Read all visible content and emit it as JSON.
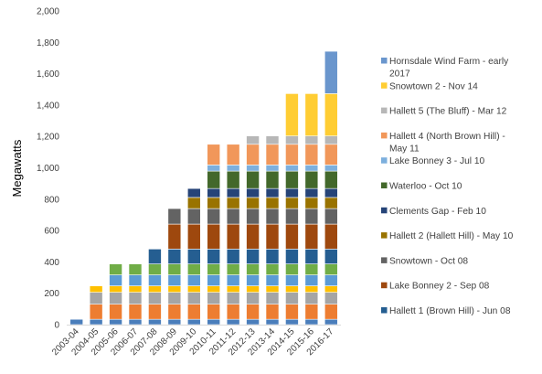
{
  "chart_data": {
    "type": "bar",
    "stacked": true,
    "title": "",
    "xlabel": "",
    "ylabel": "Megawatts",
    "ylim": [
      0,
      2000
    ],
    "y_ticks": [
      "0",
      "200",
      "400",
      "600",
      "800",
      "1,000",
      "1,200",
      "1,400",
      "1,600",
      "1,800",
      "2,000"
    ],
    "y_tick_values": [
      0,
      200,
      400,
      600,
      800,
      1000,
      1200,
      1400,
      1600,
      1800,
      2000
    ],
    "grid": false,
    "legend_position": "right",
    "categories": [
      "2003-04",
      "2004-05",
      "2005-06",
      "2006-07",
      "2007-08",
      "2008-09",
      "2009-10",
      "2010-11",
      "2011-12",
      "2012-13",
      "2013-14",
      "2014-15",
      "2015-16",
      "2016-17"
    ],
    "series": [
      {
        "name": "",
        "color": "#4a7ebb",
        "values": [
          34,
          34,
          34,
          34,
          34,
          34,
          34,
          34,
          34,
          34,
          34,
          34,
          34,
          34
        ]
      },
      {
        "name": "",
        "color": "#ed7d31",
        "values": [
          0,
          96,
          96,
          96,
          96,
          96,
          96,
          96,
          96,
          96,
          96,
          96,
          96,
          96
        ]
      },
      {
        "name": "",
        "color": "#a5a5a5",
        "values": [
          0,
          76,
          76,
          76,
          76,
          76,
          76,
          76,
          76,
          76,
          76,
          76,
          76,
          76
        ]
      },
      {
        "name": "",
        "color": "#ffc000",
        "values": [
          0,
          41,
          41,
          41,
          41,
          41,
          41,
          41,
          41,
          41,
          41,
          41,
          41,
          41
        ]
      },
      {
        "name": "",
        "color": "#5b9bd5",
        "values": [
          0,
          0,
          70,
          70,
          70,
          70,
          70,
          70,
          70,
          70,
          70,
          70,
          70,
          70
        ]
      },
      {
        "name": "",
        "color": "#70ad47",
        "values": [
          0,
          0,
          70,
          70,
          70,
          70,
          70,
          70,
          70,
          70,
          70,
          70,
          70,
          70
        ]
      },
      {
        "name": "Hallett 1 (Brown Hill) - Jun 08",
        "color": "#255e91",
        "values": [
          0,
          0,
          0,
          0,
          95,
          95,
          95,
          95,
          95,
          95,
          95,
          95,
          95,
          95
        ]
      },
      {
        "name": "Lake Bonney 2 - Sep 08",
        "color": "#9e480e",
        "values": [
          0,
          0,
          0,
          0,
          0,
          159,
          159,
          159,
          159,
          159,
          159,
          159,
          159,
          159
        ]
      },
      {
        "name": "Snowtown - Oct 08",
        "color": "#636363",
        "values": [
          0,
          0,
          0,
          0,
          0,
          99,
          99,
          99,
          99,
          99,
          99,
          99,
          99,
          99
        ]
      },
      {
        "name": "Hallett 2 (Hallett Hill) - May 10",
        "color": "#997300",
        "values": [
          0,
          0,
          0,
          0,
          0,
          0,
          71,
          71,
          71,
          71,
          71,
          71,
          71,
          71
        ]
      },
      {
        "name": "Clements Gap - Feb 10",
        "color": "#264478",
        "values": [
          0,
          0,
          0,
          0,
          0,
          0,
          57,
          57,
          57,
          57,
          57,
          57,
          57,
          57
        ]
      },
      {
        "name": "Waterloo - Oct 10",
        "color": "#43682b",
        "values": [
          0,
          0,
          0,
          0,
          0,
          0,
          0,
          111,
          111,
          111,
          111,
          111,
          111,
          111
        ]
      },
      {
        "name": "Lake Bonney 3 - Jul 10",
        "color": "#7cafdd",
        "values": [
          0,
          0,
          0,
          0,
          0,
          0,
          0,
          39,
          39,
          39,
          39,
          39,
          39,
          39
        ]
      },
      {
        "name": "Hallett 4 (North Brown Hill) - May 11",
        "color": "#f1975a",
        "values": [
          0,
          0,
          0,
          0,
          0,
          0,
          0,
          132,
          132,
          132,
          132,
          132,
          132,
          132
        ]
      },
      {
        "name": "Hallett 5 (The Bluff) - Mar 12",
        "color": "#b7b7b7",
        "values": [
          0,
          0,
          0,
          0,
          0,
          0,
          0,
          0,
          0,
          53,
          53,
          53,
          53,
          53
        ]
      },
      {
        "name": "Snowtown 2 - Nov 14",
        "color": "#ffcd33",
        "values": [
          0,
          0,
          0,
          0,
          0,
          0,
          0,
          0,
          0,
          0,
          0,
          270,
          270,
          270
        ]
      },
      {
        "name": "Hornsdale Wind Farm - early 2017",
        "color": "#6a96cd",
        "values": [
          0,
          0,
          0,
          0,
          0,
          0,
          0,
          0,
          0,
          0,
          0,
          0,
          0,
          270
        ]
      }
    ],
    "legend_lines": [
      [
        "Hornsdale Wind Farm - early",
        "2017"
      ],
      [
        "Snowtown 2 - Nov 14"
      ],
      [
        "Hallett 5 (The Bluff) - Mar 12"
      ],
      [
        "Hallett 4 (North Brown Hill) -",
        "May 11"
      ],
      [
        "Lake Bonney 3 - Jul 10"
      ],
      [
        "Waterloo - Oct 10"
      ],
      [
        "Clements Gap - Feb 10"
      ],
      [
        "Hallett 2 (Hallett Hill) - May 10"
      ],
      [
        "Snowtown - Oct 08"
      ],
      [
        "Lake Bonney 2 - Sep 08"
      ],
      [
        "Hallett 1 (Brown Hill) - Jun 08"
      ]
    ],
    "legend_colors": [
      "#6a96cd",
      "#ffcd33",
      "#b7b7b7",
      "#f1975a",
      "#7cafdd",
      "#43682b",
      "#264478",
      "#997300",
      "#636363",
      "#9e480e",
      "#255e91"
    ]
  }
}
